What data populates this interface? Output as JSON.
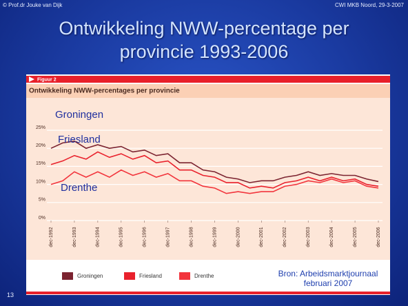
{
  "header": {
    "left": "© Prof.dr Jouke van Dijk",
    "right": "CWI MKB Noord, 29-3-2007"
  },
  "slide_title": "Ontwikkeling NWW-percentage per provincie 1993-2006",
  "slide_number": "13",
  "chart_data": {
    "type": "line",
    "figure_label": "Figuur 2",
    "title": "Ontwikkeling NWW-percentages per provincie",
    "categories": [
      "dec-1992",
      null,
      "dec-1993",
      null,
      "dec-1994",
      null,
      "dec-1995",
      null,
      "dec-1996",
      null,
      "dec-1997",
      null,
      "dec-1998",
      null,
      "dec-1999",
      null,
      "dec-2000",
      null,
      "dec-2001",
      null,
      "dec-2002",
      null,
      "dec-2003",
      null,
      "dec-2004",
      null,
      "dec-2005",
      null,
      "dec-2006"
    ],
    "series": [
      {
        "name": "Groningen",
        "color": "#7b2330",
        "values": [
          20,
          21.5,
          22,
          20,
          21,
          20,
          20.5,
          19,
          19.5,
          18,
          18.5,
          16,
          16,
          14,
          13.5,
          12,
          11.5,
          10.5,
          11,
          11,
          12,
          12.5,
          13.5,
          12.5,
          13,
          12.5,
          12.5,
          11.5,
          10.8
        ]
      },
      {
        "name": "Friesland",
        "color": "#e9212c",
        "values": [
          15.5,
          16.5,
          18,
          17,
          19,
          17.5,
          18.5,
          17,
          18,
          16,
          16.5,
          14,
          14,
          12.5,
          12,
          10.5,
          10.5,
          9,
          9.5,
          9,
          10.5,
          11,
          12,
          11,
          12,
          11,
          11.5,
          10,
          9.5
        ]
      },
      {
        "name": "Drenthe",
        "color": "#f2343c",
        "values": [
          10,
          11,
          13.5,
          12,
          13.5,
          12,
          14,
          12.5,
          13.5,
          12,
          13,
          11,
          11,
          9.5,
          9,
          7.5,
          8,
          7.5,
          8,
          8,
          9.5,
          10,
          11,
          10.5,
          11.5,
          10.5,
          11,
          9.5,
          9
        ]
      }
    ],
    "ylim": [
      0,
      25
    ],
    "yticks": [
      {
        "value": 0,
        "label": "0%"
      },
      {
        "value": 5,
        "label": "5%"
      },
      {
        "value": 10,
        "label": "10%"
      },
      {
        "value": 15,
        "label": "15%"
      },
      {
        "value": 20,
        "label": "20%"
      },
      {
        "value": 25,
        "label": "25%"
      }
    ],
    "grid": true,
    "annotations": [
      {
        "text": "Groningen"
      },
      {
        "text": "Friesland"
      },
      {
        "text": "Drenthe"
      }
    ],
    "source": [
      "Bron: Arbeidsmarktjournaal",
      "februari 2007"
    ]
  }
}
